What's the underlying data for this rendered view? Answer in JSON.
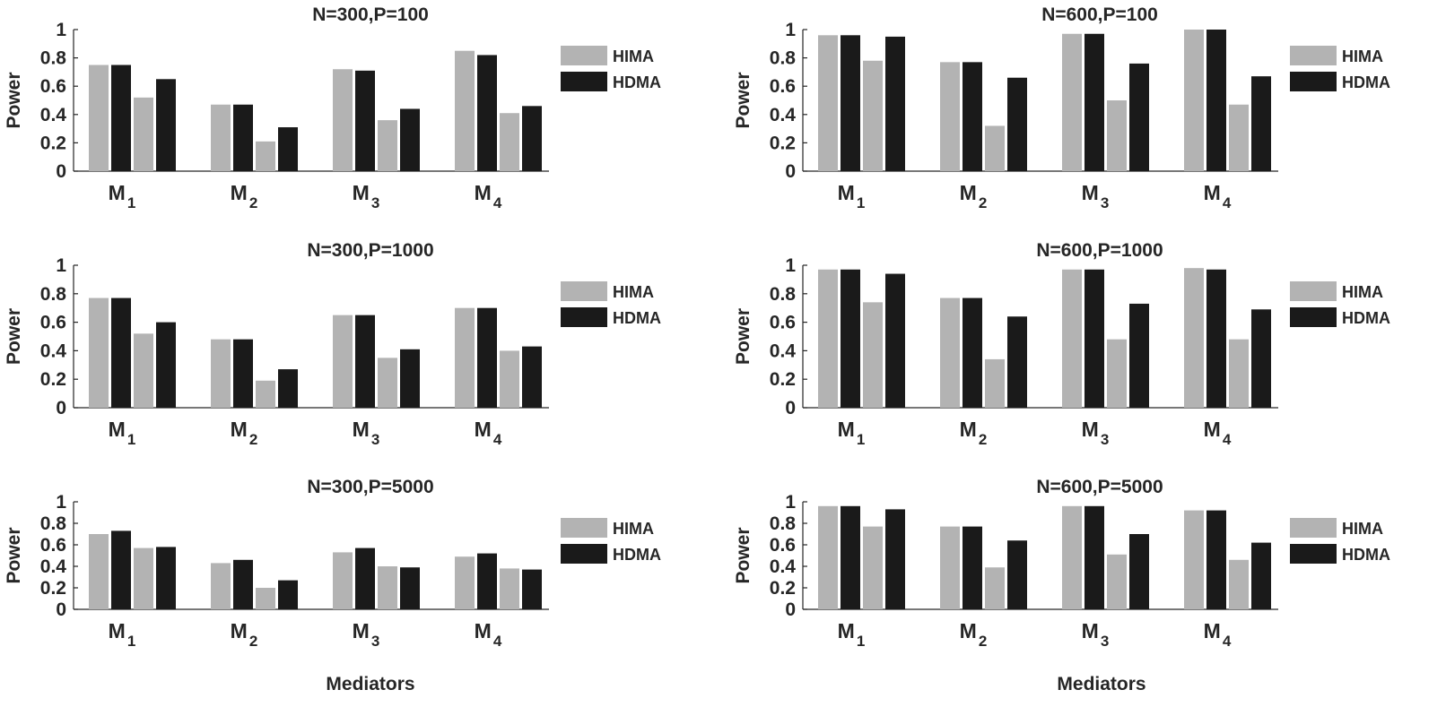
{
  "colors": {
    "HIMA": "#b3b3b3",
    "HDMA": "#1a1a1a",
    "axis": "#262626"
  },
  "shared_xlabel": "Mediators",
  "chart_data": [
    {
      "type": "bar",
      "title": "N=300,P=100",
      "ylabel": "Power",
      "ylim": [
        0,
        1
      ],
      "yticks": [
        "0",
        "0.2",
        "0.4",
        "0.6",
        "0.8",
        "1"
      ],
      "categories": [
        {
          "main": "M",
          "sub": "1"
        },
        {
          "main": "M",
          "sub": "2"
        },
        {
          "main": "M",
          "sub": "3"
        },
        {
          "main": "M",
          "sub": "4"
        }
      ],
      "series": [
        {
          "name": "HIMA",
          "values": [
            0.75,
            0.47,
            0.72,
            0.85
          ]
        },
        {
          "name": "HDMA",
          "values": [
            0.75,
            0.47,
            0.71,
            0.82
          ]
        },
        {
          "name": "HIMA",
          "values": [
            0.52,
            0.21,
            0.36,
            0.41
          ]
        },
        {
          "name": "HDMA",
          "values": [
            0.65,
            0.31,
            0.44,
            0.46
          ]
        }
      ],
      "legend": [
        "HIMA",
        "HDMA"
      ]
    },
    {
      "type": "bar",
      "title": "N=600,P=100",
      "ylabel": "Power",
      "ylim": [
        0,
        1
      ],
      "yticks": [
        "0",
        "0.2",
        "0.4",
        "0.6",
        "0.8",
        "1"
      ],
      "categories": [
        {
          "main": "M",
          "sub": "1"
        },
        {
          "main": "M",
          "sub": "2"
        },
        {
          "main": "M",
          "sub": "3"
        },
        {
          "main": "M",
          "sub": "4"
        }
      ],
      "series": [
        {
          "name": "HIMA",
          "values": [
            0.96,
            0.77,
            0.97,
            1.0
          ]
        },
        {
          "name": "HDMA",
          "values": [
            0.96,
            0.77,
            0.97,
            1.0
          ]
        },
        {
          "name": "HIMA",
          "values": [
            0.78,
            0.32,
            0.5,
            0.47
          ]
        },
        {
          "name": "HDMA",
          "values": [
            0.95,
            0.66,
            0.76,
            0.67
          ]
        }
      ],
      "legend": [
        "HIMA",
        "HDMA"
      ]
    },
    {
      "type": "bar",
      "title": "N=300,P=1000",
      "ylabel": "Power",
      "ylim": [
        0,
        1
      ],
      "yticks": [
        "0",
        "0.2",
        "0.4",
        "0.6",
        "0.8",
        "1"
      ],
      "categories": [
        {
          "main": "M",
          "sub": "1"
        },
        {
          "main": "M",
          "sub": "2"
        },
        {
          "main": "M",
          "sub": "3"
        },
        {
          "main": "M",
          "sub": "4"
        }
      ],
      "series": [
        {
          "name": "HIMA",
          "values": [
            0.77,
            0.48,
            0.65,
            0.7
          ]
        },
        {
          "name": "HDMA",
          "values": [
            0.77,
            0.48,
            0.65,
            0.7
          ]
        },
        {
          "name": "HIMA",
          "values": [
            0.52,
            0.19,
            0.35,
            0.4
          ]
        },
        {
          "name": "HDMA",
          "values": [
            0.6,
            0.27,
            0.41,
            0.43
          ]
        }
      ],
      "legend": [
        "HIMA",
        "HDMA"
      ]
    },
    {
      "type": "bar",
      "title": "N=600,P=1000",
      "ylabel": "Power",
      "ylim": [
        0,
        1
      ],
      "yticks": [
        "0",
        "0.2",
        "0.4",
        "0.6",
        "0.8",
        "1"
      ],
      "categories": [
        {
          "main": "M",
          "sub": "1"
        },
        {
          "main": "M",
          "sub": "2"
        },
        {
          "main": "M",
          "sub": "3"
        },
        {
          "main": "M",
          "sub": "4"
        }
      ],
      "series": [
        {
          "name": "HIMA",
          "values": [
            0.97,
            0.77,
            0.97,
            0.98
          ]
        },
        {
          "name": "HDMA",
          "values": [
            0.97,
            0.77,
            0.97,
            0.97
          ]
        },
        {
          "name": "HIMA",
          "values": [
            0.74,
            0.34,
            0.48,
            0.48
          ]
        },
        {
          "name": "HDMA",
          "values": [
            0.94,
            0.64,
            0.73,
            0.69
          ]
        }
      ],
      "legend": [
        "HIMA",
        "HDMA"
      ]
    },
    {
      "type": "bar",
      "title": "N=300,P=5000",
      "ylabel": "Power",
      "ylim": [
        0,
        1
      ],
      "yticks": [
        "0",
        "0.2",
        "0.4",
        "0.6",
        "0.8",
        "1"
      ],
      "categories": [
        {
          "main": "M",
          "sub": "1"
        },
        {
          "main": "M",
          "sub": "2"
        },
        {
          "main": "M",
          "sub": "3"
        },
        {
          "main": "M",
          "sub": "4"
        }
      ],
      "series": [
        {
          "name": "HIMA",
          "values": [
            0.7,
            0.43,
            0.53,
            0.49
          ]
        },
        {
          "name": "HDMA",
          "values": [
            0.73,
            0.46,
            0.57,
            0.52
          ]
        },
        {
          "name": "HIMA",
          "values": [
            0.57,
            0.2,
            0.4,
            0.38
          ]
        },
        {
          "name": "HDMA",
          "values": [
            0.58,
            0.27,
            0.39,
            0.37
          ]
        }
      ],
      "legend": [
        "HIMA",
        "HDMA"
      ]
    },
    {
      "type": "bar",
      "title": "N=600,P=5000",
      "ylabel": "Power",
      "ylim": [
        0,
        1
      ],
      "yticks": [
        "0",
        "0.2",
        "0.4",
        "0.6",
        "0.8",
        "1"
      ],
      "categories": [
        {
          "main": "M",
          "sub": "1"
        },
        {
          "main": "M",
          "sub": "2"
        },
        {
          "main": "M",
          "sub": "3"
        },
        {
          "main": "M",
          "sub": "4"
        }
      ],
      "series": [
        {
          "name": "HIMA",
          "values": [
            0.96,
            0.77,
            0.96,
            0.92
          ]
        },
        {
          "name": "HDMA",
          "values": [
            0.96,
            0.77,
            0.96,
            0.92
          ]
        },
        {
          "name": "HIMA",
          "values": [
            0.77,
            0.39,
            0.51,
            0.46
          ]
        },
        {
          "name": "HDMA",
          "values": [
            0.93,
            0.64,
            0.7,
            0.62
          ]
        }
      ],
      "legend": [
        "HIMA",
        "HDMA"
      ]
    }
  ]
}
